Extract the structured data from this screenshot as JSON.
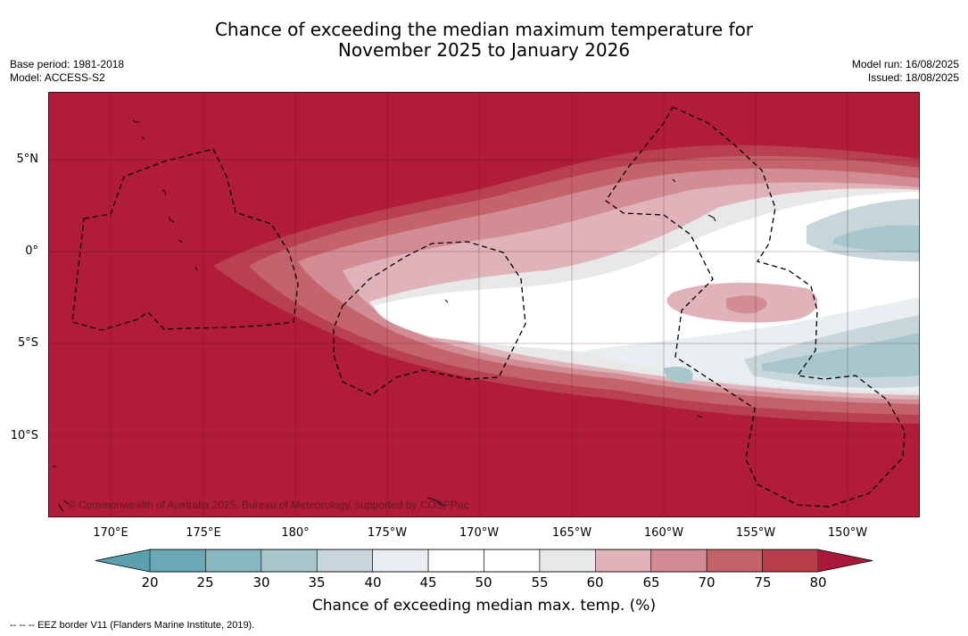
{
  "header": {
    "title_line1": "Chance of exceeding the median maximum temperature for",
    "title_line2": "November 2025 to January 2026",
    "base_period": "Base period: 1981-2018",
    "model": "Model: ACCESS-S2",
    "model_run": "Model run: 16/08/2025",
    "issued": "Issued: 18/08/2025"
  },
  "map": {
    "lat_labels": [
      "5°N",
      "0°",
      "5°S",
      "10°S"
    ],
    "lon_labels": [
      "170°E",
      "175°E",
      "180°",
      "175°W",
      "170°W",
      "165°W",
      "160°W",
      "155°W",
      "150°W"
    ],
    "copyright": "© Commonwealth of Australia 2025, Bureau of Meteorology, supported by COSPPac",
    "colors": {
      "high": "#b01c3a",
      "mid_high": "#c5515d",
      "neutral": "#ffffff",
      "low": "#a7c6cb"
    }
  },
  "colorbar": {
    "ticks": [
      "20",
      "25",
      "30",
      "35",
      "40",
      "45",
      "50",
      "55",
      "60",
      "65",
      "70",
      "75",
      "80"
    ],
    "colors": [
      "#6aa8b5",
      "#88b6c1",
      "#a8c7cc",
      "#c7d6db",
      "#e9eef0",
      "#ffffff",
      "#ffffff",
      "#e8e8e9",
      "#dfb3b9",
      "#d18d93",
      "#c5636c",
      "#b73e4b"
    ],
    "under_color": "#5aa0ad",
    "over_color": "#a9183a",
    "label": "Chance of exceeding median max. temp. (%)"
  },
  "footnote": "--  --  -- EEZ border V11 (Flanders Marine Institute, 2019)."
}
